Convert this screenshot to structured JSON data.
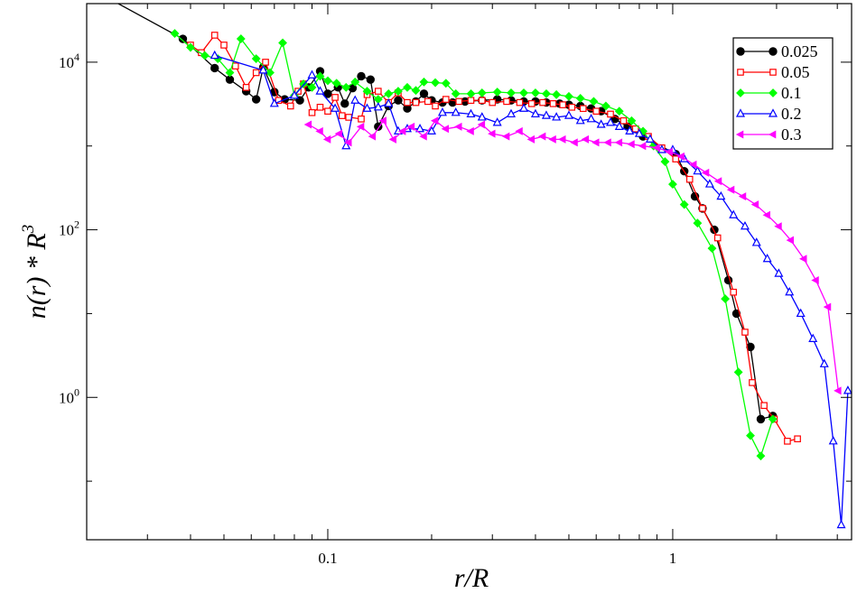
{
  "chart_data": {
    "type": "line",
    "xlabel": "r/R",
    "ylabel": "n(r) * R",
    "ylabel_superscript": "3",
    "xscale": "log",
    "yscale": "log",
    "xlim": [
      0.02,
      3.3
    ],
    "ylim": [
      0.02,
      50000
    ],
    "x_ticks": [
      {
        "value": 0.1,
        "label": "0.1"
      },
      {
        "value": 1,
        "label": "1"
      }
    ],
    "y_ticks": [
      {
        "value": 1,
        "base": "10",
        "exp": "0"
      },
      {
        "value": 100,
        "base": "10",
        "exp": "2"
      },
      {
        "value": 10000,
        "base": "10",
        "exp": "4"
      }
    ],
    "legend_position": "top-right",
    "series": [
      {
        "name": "0.025",
        "color": "#000000",
        "marker": "filled-circle",
        "points": [
          [
            0.02,
            80000
          ],
          [
            0.038,
            19000
          ],
          [
            0.047,
            8500
          ],
          [
            0.052,
            6200
          ],
          [
            0.058,
            4500
          ],
          [
            0.062,
            3600
          ],
          [
            0.065,
            8700
          ],
          [
            0.07,
            4400
          ],
          [
            0.075,
            3600
          ],
          [
            0.083,
            3500
          ],
          [
            0.088,
            5000
          ],
          [
            0.095,
            7800
          ],
          [
            0.1,
            4200
          ],
          [
            0.107,
            5000
          ],
          [
            0.112,
            3200
          ],
          [
            0.118,
            4900
          ],
          [
            0.125,
            6800
          ],
          [
            0.133,
            6200
          ],
          [
            0.14,
            1700
          ],
          [
            0.15,
            3000
          ],
          [
            0.16,
            3500
          ],
          [
            0.17,
            2800
          ],
          [
            0.18,
            3400
          ],
          [
            0.19,
            4200
          ],
          [
            0.2,
            3500
          ],
          [
            0.215,
            3300
          ],
          [
            0.23,
            3300
          ],
          [
            0.25,
            3400
          ],
          [
            0.28,
            3500
          ],
          [
            0.31,
            3600
          ],
          [
            0.34,
            3500
          ],
          [
            0.37,
            3400
          ],
          [
            0.4,
            3400
          ],
          [
            0.43,
            3300
          ],
          [
            0.47,
            3200
          ],
          [
            0.5,
            3100
          ],
          [
            0.54,
            3000
          ],
          [
            0.58,
            2800
          ],
          [
            0.62,
            2600
          ],
          [
            0.68,
            2100
          ],
          [
            0.74,
            1700
          ],
          [
            0.82,
            1300
          ],
          [
            1.02,
            800
          ],
          [
            1.08,
            500
          ],
          [
            1.16,
            250
          ],
          [
            1.22,
            180
          ],
          [
            1.32,
            100
          ],
          [
            1.45,
            25
          ],
          [
            1.53,
            10
          ],
          [
            1.68,
            4
          ],
          [
            1.8,
            0.55
          ],
          [
            1.95,
            0.6
          ]
        ]
      },
      {
        "name": "0.05",
        "color": "#ff0000",
        "marker": "open-square",
        "points": [
          [
            0.04,
            16000
          ],
          [
            0.043,
            13000
          ],
          [
            0.047,
            21000
          ],
          [
            0.05,
            16000
          ],
          [
            0.054,
            9000
          ],
          [
            0.058,
            5000
          ],
          [
            0.062,
            7500
          ],
          [
            0.066,
            10000
          ],
          [
            0.072,
            3500
          ],
          [
            0.078,
            3000
          ],
          [
            0.082,
            4500
          ],
          [
            0.085,
            5500
          ],
          [
            0.09,
            2500
          ],
          [
            0.095,
            2900
          ],
          [
            0.1,
            2600
          ],
          [
            0.105,
            3800
          ],
          [
            0.11,
            2300
          ],
          [
            0.115,
            2200
          ],
          [
            0.125,
            2100
          ],
          [
            0.13,
            4100
          ],
          [
            0.14,
            4500
          ],
          [
            0.15,
            3300
          ],
          [
            0.16,
            4300
          ],
          [
            0.17,
            3300
          ],
          [
            0.18,
            3300
          ],
          [
            0.195,
            3400
          ],
          [
            0.205,
            3000
          ],
          [
            0.22,
            3600
          ],
          [
            0.24,
            3400
          ],
          [
            0.26,
            3500
          ],
          [
            0.28,
            3500
          ],
          [
            0.3,
            3300
          ],
          [
            0.33,
            3400
          ],
          [
            0.36,
            3300
          ],
          [
            0.39,
            3200
          ],
          [
            0.42,
            3300
          ],
          [
            0.45,
            3200
          ],
          [
            0.48,
            3100
          ],
          [
            0.51,
            2900
          ],
          [
            0.55,
            2800
          ],
          [
            0.6,
            2600
          ],
          [
            0.66,
            2400
          ],
          [
            0.72,
            2000
          ],
          [
            0.78,
            1600
          ],
          [
            0.85,
            1300
          ],
          [
            0.93,
            950
          ],
          [
            1.02,
            700
          ],
          [
            1.12,
            400
          ],
          [
            1.22,
            180
          ],
          [
            1.35,
            80
          ],
          [
            1.5,
            18
          ],
          [
            1.62,
            6
          ],
          [
            1.7,
            1.5
          ],
          [
            1.84,
            0.8
          ],
          [
            1.97,
            0.55
          ],
          [
            2.15,
            0.3
          ],
          [
            2.3,
            0.32
          ]
        ]
      },
      {
        "name": "0.1",
        "color": "#00ff00",
        "marker": "filled-diamond",
        "points": [
          [
            0.036,
            22000
          ],
          [
            0.04,
            15000
          ],
          [
            0.044,
            12000
          ],
          [
            0.048,
            11000
          ],
          [
            0.052,
            7500
          ],
          [
            0.056,
            19000
          ],
          [
            0.062,
            11000
          ],
          [
            0.068,
            7500
          ],
          [
            0.074,
            17000
          ],
          [
            0.08,
            4000
          ],
          [
            0.085,
            5500
          ],
          [
            0.09,
            5000
          ],
          [
            0.095,
            6800
          ],
          [
            0.1,
            6000
          ],
          [
            0.106,
            5600
          ],
          [
            0.113,
            5000
          ],
          [
            0.12,
            5800
          ],
          [
            0.13,
            4500
          ],
          [
            0.14,
            3600
          ],
          [
            0.15,
            4200
          ],
          [
            0.16,
            4500
          ],
          [
            0.17,
            5000
          ],
          [
            0.18,
            4600
          ],
          [
            0.19,
            5800
          ],
          [
            0.205,
            5700
          ],
          [
            0.22,
            5600
          ],
          [
            0.235,
            4200
          ],
          [
            0.26,
            4200
          ],
          [
            0.28,
            4300
          ],
          [
            0.31,
            4400
          ],
          [
            0.34,
            4300
          ],
          [
            0.37,
            4300
          ],
          [
            0.4,
            4300
          ],
          [
            0.43,
            4200
          ],
          [
            0.46,
            4100
          ],
          [
            0.5,
            3900
          ],
          [
            0.54,
            3700
          ],
          [
            0.59,
            3400
          ],
          [
            0.64,
            3000
          ],
          [
            0.7,
            2600
          ],
          [
            0.76,
            2000
          ],
          [
            0.82,
            1500
          ],
          [
            0.88,
            1000
          ],
          [
            0.95,
            650
          ],
          [
            1.0,
            350
          ],
          [
            1.08,
            200
          ],
          [
            1.18,
            120
          ],
          [
            1.3,
            60
          ],
          [
            1.42,
            15
          ],
          [
            1.55,
            2
          ],
          [
            1.68,
            0.35
          ],
          [
            1.8,
            0.2
          ],
          [
            1.95,
            0.55
          ]
        ]
      },
      {
        "name": "0.2",
        "color": "#0000ff",
        "marker": "open-triangle-up",
        "points": [
          [
            0.047,
            12000
          ],
          [
            0.065,
            8000
          ],
          [
            0.07,
            3200
          ],
          [
            0.08,
            4000
          ],
          [
            0.09,
            7000
          ],
          [
            0.095,
            4500
          ],
          [
            0.105,
            2800
          ],
          [
            0.113,
            1000
          ],
          [
            0.12,
            3500
          ],
          [
            0.13,
            2800
          ],
          [
            0.14,
            2900
          ],
          [
            0.15,
            3200
          ],
          [
            0.16,
            1500
          ],
          [
            0.17,
            1600
          ],
          [
            0.185,
            1600
          ],
          [
            0.2,
            1500
          ],
          [
            0.215,
            2500
          ],
          [
            0.235,
            2500
          ],
          [
            0.26,
            2400
          ],
          [
            0.28,
            2200
          ],
          [
            0.31,
            1900
          ],
          [
            0.34,
            2400
          ],
          [
            0.37,
            2800
          ],
          [
            0.4,
            2400
          ],
          [
            0.43,
            2300
          ],
          [
            0.46,
            2200
          ],
          [
            0.5,
            2300
          ],
          [
            0.54,
            2000
          ],
          [
            0.58,
            2100
          ],
          [
            0.62,
            1800
          ],
          [
            0.66,
            1900
          ],
          [
            0.7,
            1700
          ],
          [
            0.75,
            1500
          ],
          [
            0.8,
            1400
          ],
          [
            0.86,
            1200
          ],
          [
            0.93,
            900
          ],
          [
            1.0,
            900
          ],
          [
            1.08,
            700
          ],
          [
            1.18,
            500
          ],
          [
            1.28,
            350
          ],
          [
            1.38,
            250
          ],
          [
            1.5,
            150
          ],
          [
            1.62,
            110
          ],
          [
            1.75,
            70
          ],
          [
            1.88,
            45
          ],
          [
            2.03,
            30
          ],
          [
            2.18,
            18
          ],
          [
            2.35,
            10
          ],
          [
            2.55,
            5
          ],
          [
            2.75,
            2.5
          ],
          [
            2.92,
            0.3
          ],
          [
            3.08,
            0.03
          ],
          [
            3.22,
            1.2
          ]
        ]
      },
      {
        "name": "0.3",
        "color": "#ff00ff",
        "marker": "filled-triangle-left",
        "points": [
          [
            0.088,
            1800
          ],
          [
            0.095,
            1500
          ],
          [
            0.1,
            1200
          ],
          [
            0.108,
            1400
          ],
          [
            0.115,
            1100
          ],
          [
            0.125,
            1700
          ],
          [
            0.135,
            1300
          ],
          [
            0.145,
            2000
          ],
          [
            0.155,
            1200
          ],
          [
            0.165,
            1500
          ],
          [
            0.175,
            1700
          ],
          [
            0.19,
            1300
          ],
          [
            0.205,
            2000
          ],
          [
            0.22,
            1600
          ],
          [
            0.24,
            1700
          ],
          [
            0.26,
            1500
          ],
          [
            0.28,
            1800
          ],
          [
            0.3,
            1400
          ],
          [
            0.33,
            1300
          ],
          [
            0.36,
            1500
          ],
          [
            0.39,
            1200
          ],
          [
            0.42,
            1300
          ],
          [
            0.45,
            1200
          ],
          [
            0.48,
            1200
          ],
          [
            0.52,
            1100
          ],
          [
            0.56,
            1200
          ],
          [
            0.6,
            1100
          ],
          [
            0.65,
            1100
          ],
          [
            0.7,
            1100
          ],
          [
            0.76,
            1050
          ],
          [
            0.82,
            1000
          ],
          [
            0.9,
            950
          ],
          [
            0.98,
            850
          ],
          [
            1.06,
            750
          ],
          [
            1.15,
            600
          ],
          [
            1.25,
            480
          ],
          [
            1.36,
            380
          ],
          [
            1.48,
            300
          ],
          [
            1.6,
            250
          ],
          [
            1.74,
            200
          ],
          [
            1.88,
            150
          ],
          [
            2.03,
            110
          ],
          [
            2.2,
            75
          ],
          [
            2.4,
            45
          ],
          [
            2.6,
            25
          ],
          [
            2.82,
            12
          ],
          [
            3.02,
            1.2
          ]
        ]
      }
    ]
  }
}
